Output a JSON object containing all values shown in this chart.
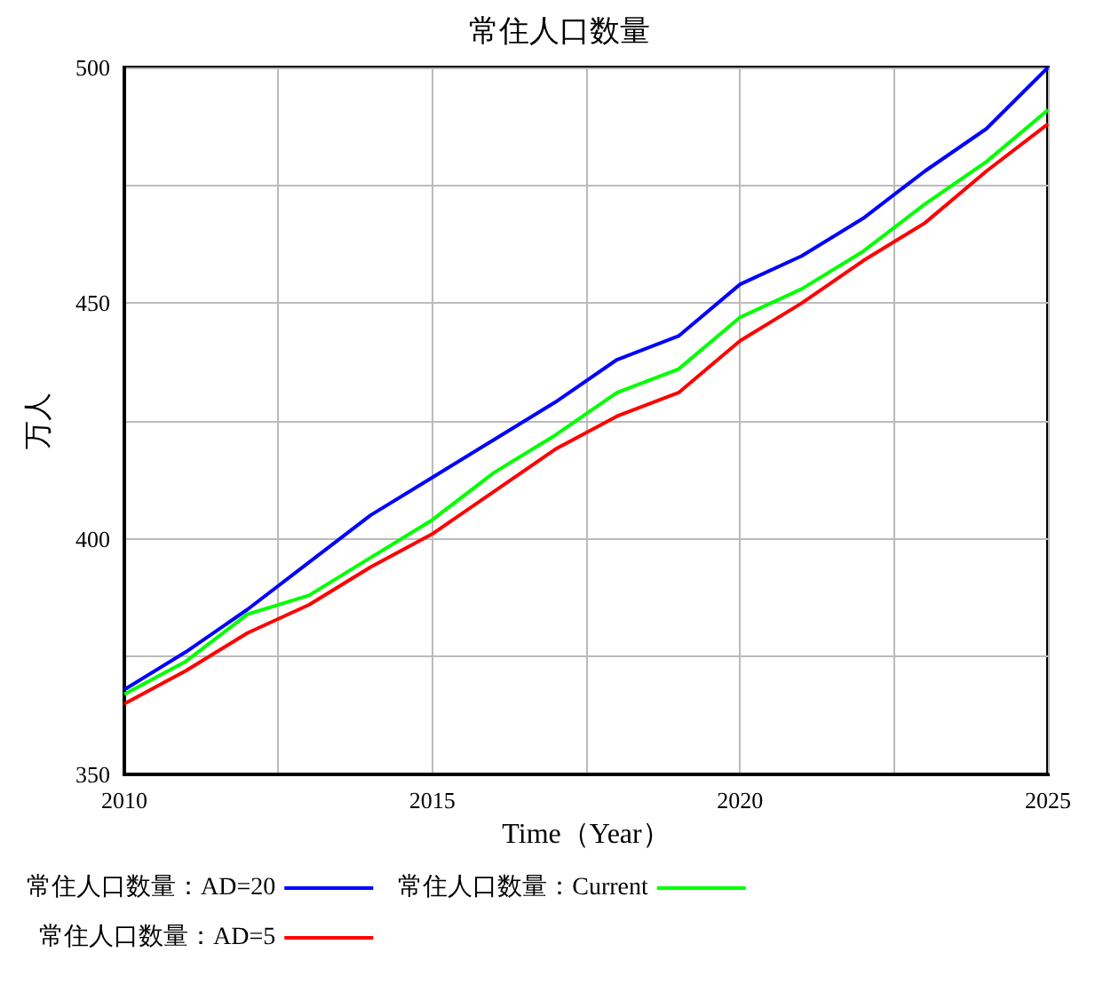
{
  "chart_data": {
    "type": "line",
    "title": "常住人口数量",
    "xlabel": "Time（Year）",
    "ylabel": "万人",
    "x": [
      2010,
      2011,
      2012,
      2013,
      2014,
      2015,
      2016,
      2017,
      2018,
      2019,
      2020,
      2021,
      2022,
      2023,
      2024,
      2025
    ],
    "series": [
      {
        "name": "常住人口数量：AD=20",
        "color": "#0000ff",
        "values": [
          368,
          376,
          385,
          395,
          405,
          413,
          421,
          429,
          438,
          443,
          454,
          460,
          468,
          478,
          487,
          500
        ]
      },
      {
        "name": "常住人口数量：Current",
        "color": "#00ff00",
        "values": [
          367,
          374,
          384,
          388,
          396,
          404,
          414,
          422,
          431,
          436,
          447,
          453,
          461,
          471,
          480,
          491
        ]
      },
      {
        "name": "常住人口数量：AD=5",
        "color": "#ff0000",
        "values": [
          365,
          372,
          380,
          386,
          394,
          401,
          410,
          419,
          426,
          431,
          442,
          450,
          459,
          467,
          478,
          488
        ]
      }
    ],
    "xlim": [
      2010,
      2025
    ],
    "xticks": [
      2010,
      {
        "value": 2012.5,
        "label": null
      },
      2015,
      {
        "value": 2017.5,
        "label": null
      },
      2020,
      {
        "value": 2022.5,
        "label": null
      },
      2025
    ],
    "ylim": [
      350,
      500
    ],
    "yticks": [
      350,
      {
        "value": 375,
        "label": null
      },
      400,
      {
        "value": 425,
        "label": null
      },
      450,
      {
        "value": 475,
        "label": null
      },
      500
    ],
    "grid": true,
    "legend": "bottom",
    "marker": "none",
    "line_style": "solid"
  }
}
